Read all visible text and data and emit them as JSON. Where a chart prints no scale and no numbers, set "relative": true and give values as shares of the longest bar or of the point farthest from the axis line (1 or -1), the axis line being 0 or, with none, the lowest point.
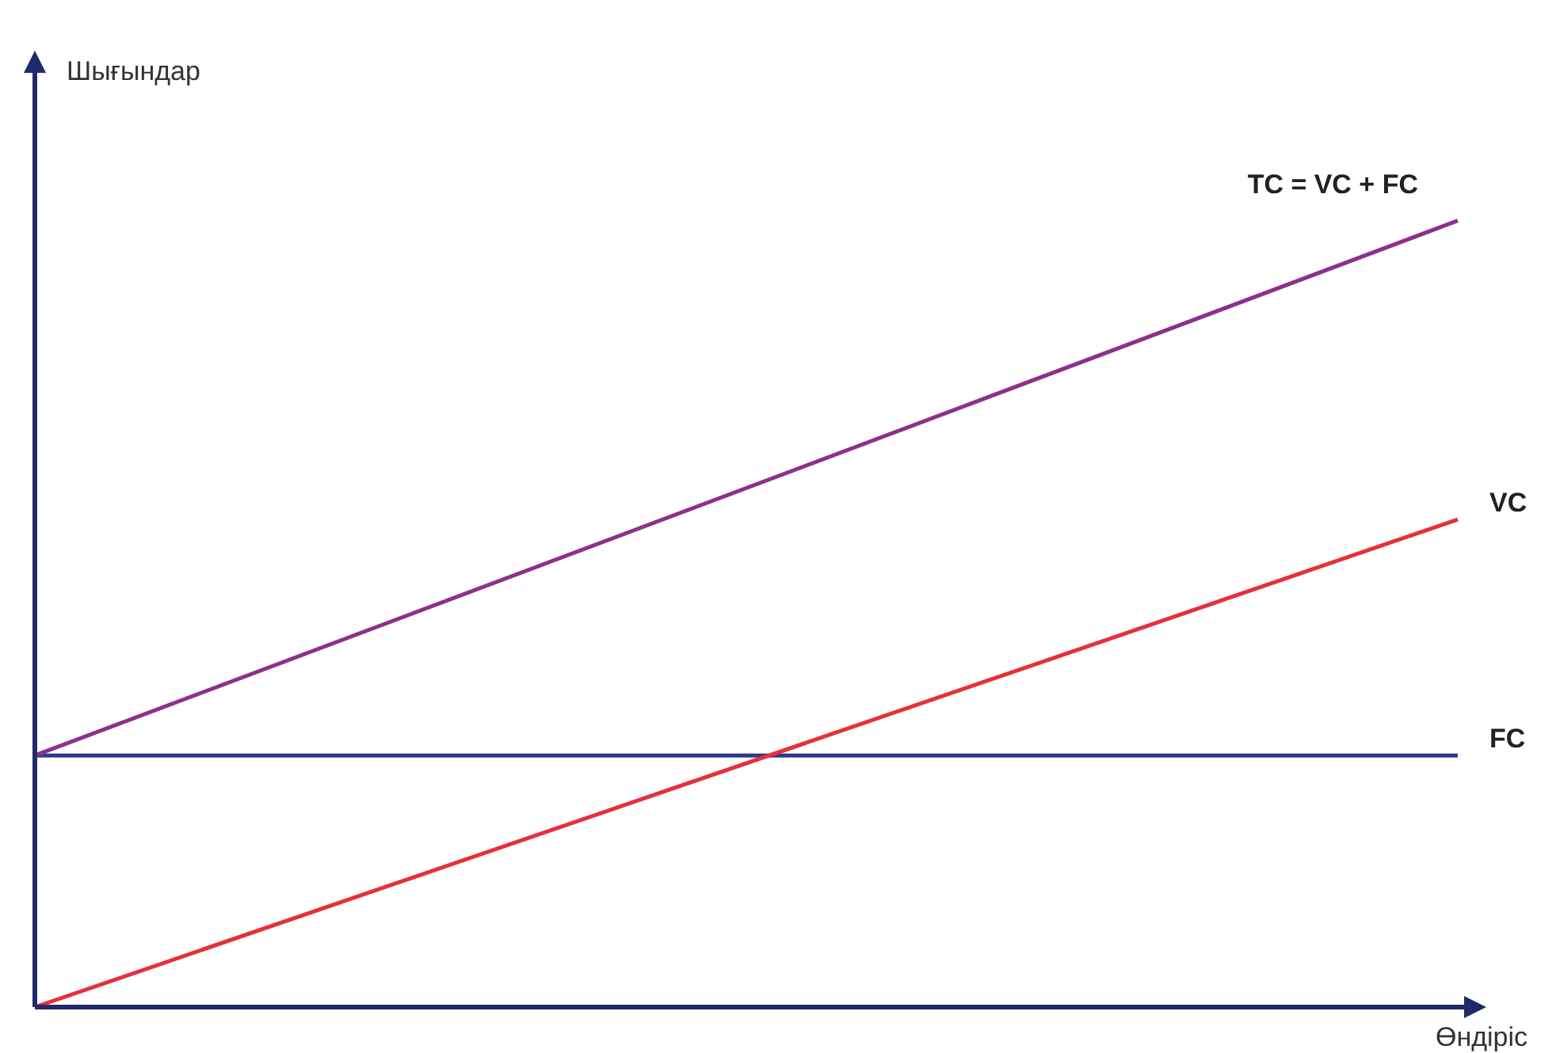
{
  "chart_data": {
    "type": "line",
    "relative": true,
    "xlabel": "Өндіріс",
    "ylabel": "Шығындар",
    "categories": [
      null,
      null
    ],
    "series": [
      {
        "name": "TC = VC + FC",
        "color": "#8e2f8f",
        "values": [
          0.32,
          1
        ]
      },
      {
        "name": "VC",
        "color": "#e6303a",
        "values": [
          0,
          0.62
        ]
      },
      {
        "name": "FC",
        "color": "#2b3990",
        "values": [
          0.32,
          0.32
        ]
      }
    ]
  }
}
